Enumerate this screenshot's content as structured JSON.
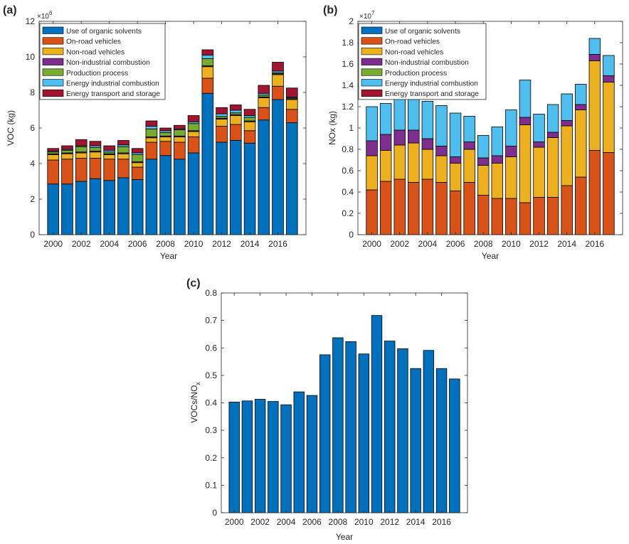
{
  "colors": {
    "Use of organic solvents": "#0072BD",
    "On-road vehicles": "#D95319",
    "Non-road vehicles": "#EDB120",
    "Non-industrial combustion": "#7E2F8E",
    "Production process": "#77AC30",
    "Energy industrial combustion": "#4DBEEE",
    "Energy transport and storage": "#A2142F",
    "ratio_bar": "#0072BD",
    "axis": "#262626"
  },
  "chart_data": [
    {
      "panel_label": "(a)",
      "type": "bar",
      "stacked": true,
      "title": "",
      "xlabel": "Year",
      "ylabel": "VOC (kg)",
      "exponent_label": "×10",
      "exponent_power": "6",
      "scale": 1000000,
      "ylim": [
        0,
        12
      ],
      "yticks": [
        0,
        2,
        4,
        6,
        8,
        10,
        12
      ],
      "xlim": [
        1999,
        2018
      ],
      "xticks": [
        2000,
        2002,
        2004,
        2006,
        2008,
        2010,
        2012,
        2014,
        2016
      ],
      "x": [
        2000,
        2001,
        2002,
        2003,
        2004,
        2005,
        2006,
        2007,
        2008,
        2009,
        2010,
        2011,
        2012,
        2013,
        2014,
        2015,
        2016,
        2017
      ],
      "legend_position": "top-left",
      "series": [
        {
          "name": "Use of organic solvents",
          "values": [
            2.85,
            2.85,
            3.0,
            3.15,
            3.05,
            3.2,
            3.1,
            4.25,
            4.45,
            4.25,
            4.6,
            7.95,
            5.2,
            5.3,
            5.15,
            6.45,
            7.6,
            6.3
          ]
        },
        {
          "name": "On-road vehicles",
          "values": [
            1.35,
            1.4,
            1.3,
            1.15,
            1.2,
            1.05,
            0.7,
            0.95,
            0.8,
            0.95,
            0.9,
            0.85,
            0.9,
            0.9,
            0.7,
            0.7,
            0.75,
            0.75
          ]
        },
        {
          "name": "Non-road vehicles",
          "values": [
            0.3,
            0.3,
            0.3,
            0.35,
            0.25,
            0.3,
            0.25,
            0.25,
            0.25,
            0.3,
            0.3,
            0.65,
            0.4,
            0.5,
            0.5,
            0.55,
            0.65,
            0.55
          ]
        },
        {
          "name": "Non-industrial combustion",
          "values": [
            0.05,
            0.05,
            0.05,
            0.05,
            0.05,
            0.05,
            0.05,
            0.05,
            0.05,
            0.05,
            0.05,
            0.05,
            0.05,
            0.05,
            0.05,
            0.05,
            0.05,
            0.05
          ]
        },
        {
          "name": "Production process",
          "values": [
            0.1,
            0.15,
            0.3,
            0.2,
            0.1,
            0.35,
            0.4,
            0.45,
            0.2,
            0.35,
            0.4,
            0.4,
            0.1,
            0.1,
            0.2,
            0.1,
            0.05,
            0.05
          ]
        },
        {
          "name": "Energy industrial combustion",
          "values": [
            0.05,
            0.05,
            0.05,
            0.1,
            0.1,
            0.1,
            0.1,
            0.15,
            0.1,
            0.05,
            0.1,
            0.2,
            0.15,
            0.15,
            0.1,
            0.1,
            0.1,
            0.05
          ]
        },
        {
          "name": "Energy transport and storage",
          "values": [
            0.15,
            0.2,
            0.35,
            0.25,
            0.25,
            0.25,
            0.25,
            0.3,
            0.15,
            0.2,
            0.35,
            0.3,
            0.35,
            0.3,
            0.35,
            0.45,
            0.5,
            0.5
          ]
        }
      ]
    },
    {
      "panel_label": "(b)",
      "type": "bar",
      "stacked": true,
      "title": "",
      "xlabel": "Year",
      "ylabel": "NOx (kg)",
      "exponent_label": "×10",
      "exponent_power": "7",
      "scale": 10000000,
      "ylim": [
        0,
        2
      ],
      "yticks": [
        0,
        0.2,
        0.4,
        0.6,
        0.8,
        1,
        1.2,
        1.4,
        1.6,
        1.8,
        2
      ],
      "xlim": [
        1999,
        2018
      ],
      "xticks": [
        2000,
        2002,
        2004,
        2006,
        2008,
        2010,
        2012,
        2014,
        2016
      ],
      "x": [
        2000,
        2001,
        2002,
        2003,
        2004,
        2005,
        2006,
        2007,
        2008,
        2009,
        2010,
        2011,
        2012,
        2013,
        2014,
        2015,
        2016,
        2017
      ],
      "legend_position": "top-left",
      "series": [
        {
          "name": "Use of organic solvents",
          "values": [
            0,
            0,
            0,
            0,
            0,
            0,
            0,
            0,
            0,
            0,
            0,
            0,
            0,
            0,
            0,
            0,
            0,
            0
          ]
        },
        {
          "name": "On-road vehicles",
          "values": [
            0.42,
            0.5,
            0.52,
            0.49,
            0.52,
            0.49,
            0.41,
            0.49,
            0.37,
            0.34,
            0.34,
            0.3,
            0.35,
            0.35,
            0.46,
            0.54,
            0.79,
            0.77
          ]
        },
        {
          "name": "Non-road vehicles",
          "values": [
            0.32,
            0.29,
            0.32,
            0.37,
            0.28,
            0.25,
            0.26,
            0.31,
            0.28,
            0.33,
            0.39,
            0.73,
            0.47,
            0.56,
            0.56,
            0.63,
            0.84,
            0.66
          ]
        },
        {
          "name": "Non-industrial combustion",
          "values": [
            0.14,
            0.15,
            0.14,
            0.12,
            0.1,
            0.09,
            0.06,
            0.07,
            0.07,
            0.07,
            0.1,
            0.07,
            0.05,
            0.05,
            0.05,
            0.05,
            0.06,
            0.06
          ]
        },
        {
          "name": "Production process",
          "values": [
            0,
            0,
            0,
            0,
            0,
            0,
            0,
            0,
            0,
            0,
            0,
            0,
            0,
            0,
            0,
            0,
            0,
            0
          ]
        },
        {
          "name": "Energy industrial combustion",
          "values": [
            0.32,
            0.29,
            0.3,
            0.3,
            0.35,
            0.38,
            0.41,
            0.24,
            0.21,
            0.27,
            0.34,
            0.35,
            0.26,
            0.26,
            0.25,
            0.19,
            0.15,
            0.19
          ]
        },
        {
          "name": "Energy transport and storage",
          "values": [
            0,
            0,
            0,
            0,
            0,
            0,
            0,
            0,
            0,
            0,
            0,
            0,
            0,
            0,
            0,
            0,
            0,
            0
          ]
        }
      ]
    },
    {
      "panel_label": "(c)",
      "type": "bar",
      "stacked": false,
      "title": "",
      "xlabel": "Year",
      "ylabel": "VOCs/NO",
      "ylabel_subscript": "x",
      "ylim": [
        0,
        0.8
      ],
      "yticks": [
        0,
        0.1,
        0.2,
        0.3,
        0.4,
        0.5,
        0.6,
        0.7,
        0.8
      ],
      "xlim": [
        1999,
        2018
      ],
      "xticks": [
        2000,
        2002,
        2004,
        2006,
        2008,
        2010,
        2012,
        2014,
        2016
      ],
      "x": [
        2000,
        2001,
        2002,
        2003,
        2004,
        2005,
        2006,
        2007,
        2008,
        2009,
        2010,
        2011,
        2012,
        2013,
        2014,
        2015,
        2016,
        2017
      ],
      "values": [
        0.403,
        0.407,
        0.413,
        0.405,
        0.393,
        0.44,
        0.427,
        0.575,
        0.637,
        0.623,
        0.578,
        0.718,
        0.625,
        0.597,
        0.525,
        0.591,
        0.525,
        0.487
      ]
    }
  ]
}
